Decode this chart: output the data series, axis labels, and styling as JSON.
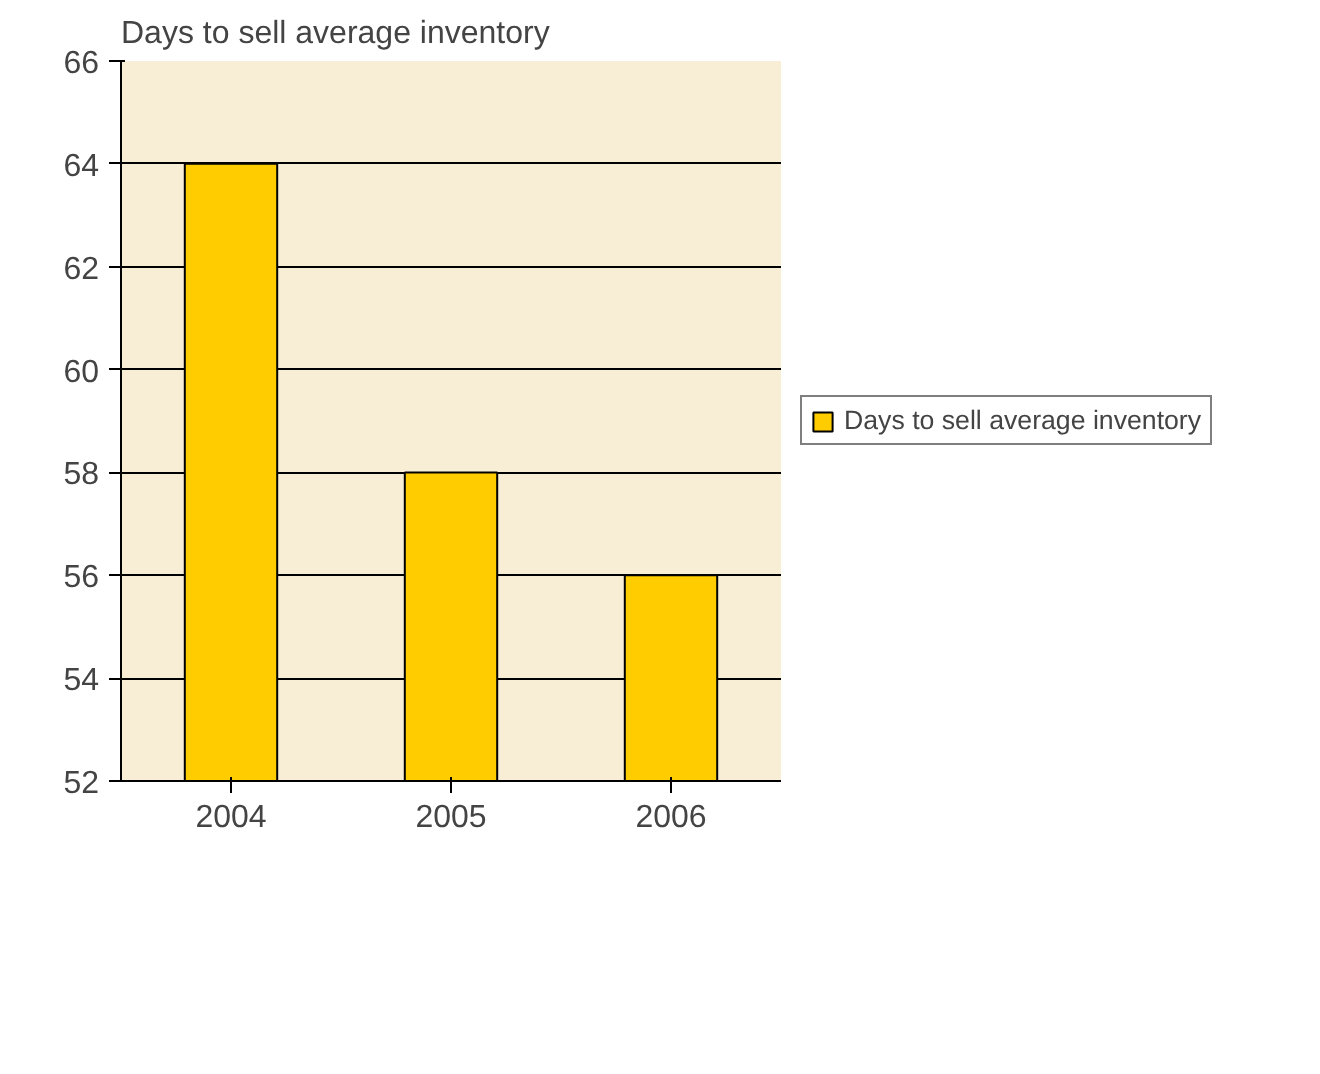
{
  "chart_data": {
    "type": "bar",
    "title": "Days to sell average inventory",
    "categories": [
      "2004",
      "2005",
      "2006"
    ],
    "series": [
      {
        "name": "Days to sell average inventory",
        "color": "#ffcc00",
        "values": [
          64,
          58,
          56
        ]
      }
    ],
    "ylim": [
      52,
      66
    ],
    "yticks": [
      52,
      54,
      56,
      58,
      60,
      62,
      64,
      66
    ],
    "grid": "y",
    "legend": "right"
  }
}
